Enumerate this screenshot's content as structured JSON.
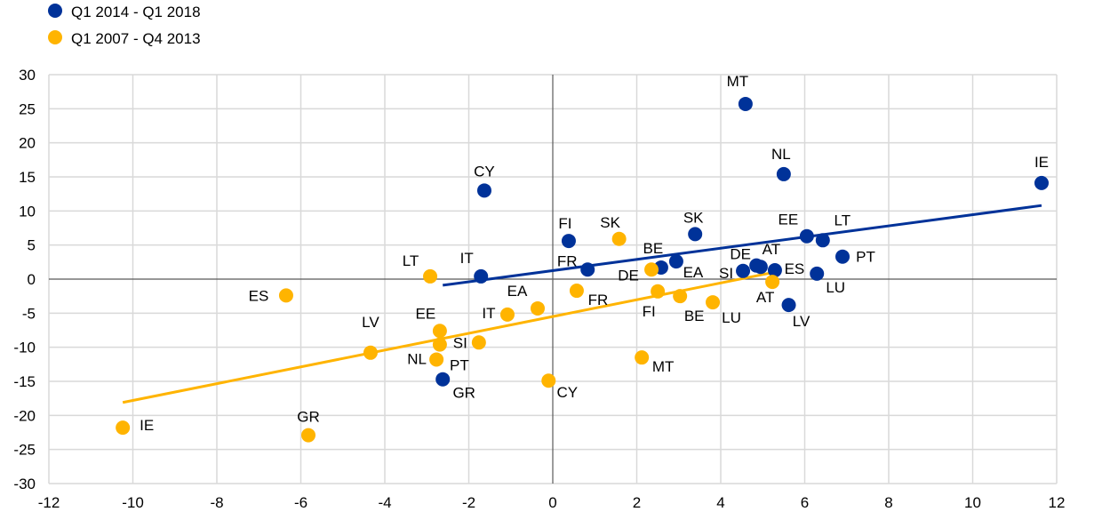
{
  "chart_data": {
    "type": "scatter",
    "title": "",
    "xlabel": "",
    "ylabel": "",
    "xlim": [
      -12,
      12
    ],
    "ylim": [
      -30,
      30
    ],
    "xticks": [
      -12,
      -10,
      -8,
      -6,
      -4,
      -2,
      0,
      2,
      4,
      6,
      8,
      10,
      12
    ],
    "yticks": [
      30,
      25,
      20,
      15,
      10,
      5,
      0,
      -5,
      -10,
      -15,
      -20,
      -25,
      -30
    ],
    "grid": true,
    "legend": "top-left",
    "series": [
      {
        "name": "Q1 2014 - Q1 2018",
        "color": "#003299",
        "points": [
          {
            "label": "MT",
            "x": 4.59,
            "y": 25.7
          },
          {
            "label": "NL",
            "x": 5.5,
            "y": 15.4
          },
          {
            "label": "IE",
            "x": 11.64,
            "y": 14.1
          },
          {
            "label": "CY",
            "x": -1.63,
            "y": 13.0
          },
          {
            "label": "FI",
            "x": 0.38,
            "y": 5.6
          },
          {
            "label": "SK",
            "x": 3.39,
            "y": 6.6
          },
          {
            "label": "EE",
            "x": 6.05,
            "y": 6.3
          },
          {
            "label": "LT",
            "x": 6.43,
            "y": 5.7
          },
          {
            "label": "PT",
            "x": 6.9,
            "y": 3.3
          },
          {
            "label": "IT",
            "x": -1.71,
            "y": 0.4
          },
          {
            "label": "FR",
            "x": 0.83,
            "y": 1.4
          },
          {
            "label": "BE",
            "x": 2.58,
            "y": 1.7
          },
          {
            "label": "EA",
            "x": 2.94,
            "y": 2.6
          },
          {
            "label": "SI",
            "x": 4.53,
            "y": 1.2
          },
          {
            "label": "DE",
            "x": 4.85,
            "y": 2.0
          },
          {
            "label": "AT",
            "x": 4.95,
            "y": 1.8
          },
          {
            "label": "ES",
            "x": 5.29,
            "y": 1.3
          },
          {
            "label": "LU",
            "x": 6.29,
            "y": 0.8
          },
          {
            "label": "LV",
            "x": 5.62,
            "y": -3.8
          },
          {
            "label": "GR",
            "x": -2.62,
            "y": -14.7
          }
        ],
        "trendline": {
          "x": [
            -2.62,
            11.64
          ],
          "y": [
            -0.9,
            10.8
          ]
        }
      },
      {
        "name": "Q1 2007 - Q4 2013",
        "color": "#FFB400",
        "points": [
          {
            "label": "LT",
            "x": -2.92,
            "y": 0.4
          },
          {
            "label": "ES",
            "x": -6.35,
            "y": -2.4
          },
          {
            "label": "SK",
            "x": 1.58,
            "y": 5.9
          },
          {
            "label": "DE",
            "x": 2.35,
            "y": 1.4
          },
          {
            "label": "EA",
            "x": -0.36,
            "y": -4.3
          },
          {
            "label": "IT",
            "x": -1.08,
            "y": -5.2
          },
          {
            "label": "FR",
            "x": 0.57,
            "y": -1.7
          },
          {
            "label": "FI",
            "x": 2.5,
            "y": -1.8
          },
          {
            "label": "BE",
            "x": 3.03,
            "y": -2.5
          },
          {
            "label": "LU",
            "x": 3.81,
            "y": -3.4
          },
          {
            "label": "AT",
            "x": 5.23,
            "y": -0.4
          },
          {
            "label": "LV",
            "x": -4.34,
            "y": -10.8
          },
          {
            "label": "EE",
            "x": -2.69,
            "y": -7.6
          },
          {
            "label": "SI",
            "x": -1.76,
            "y": -9.3
          },
          {
            "label": "PT",
            "x": -2.69,
            "y": -9.6
          },
          {
            "label": "NL",
            "x": -2.77,
            "y": -11.8
          },
          {
            "label": "MT",
            "x": 2.12,
            "y": -11.5
          },
          {
            "label": "CY",
            "x": -0.1,
            "y": -14.9
          },
          {
            "label": "IE",
            "x": -10.24,
            "y": -21.8
          },
          {
            "label": "GR",
            "x": -5.82,
            "y": -22.9
          }
        ],
        "trendline": {
          "x": [
            -10.24,
            5.27
          ],
          "y": [
            -18.1,
            1.0
          ]
        }
      }
    ]
  }
}
